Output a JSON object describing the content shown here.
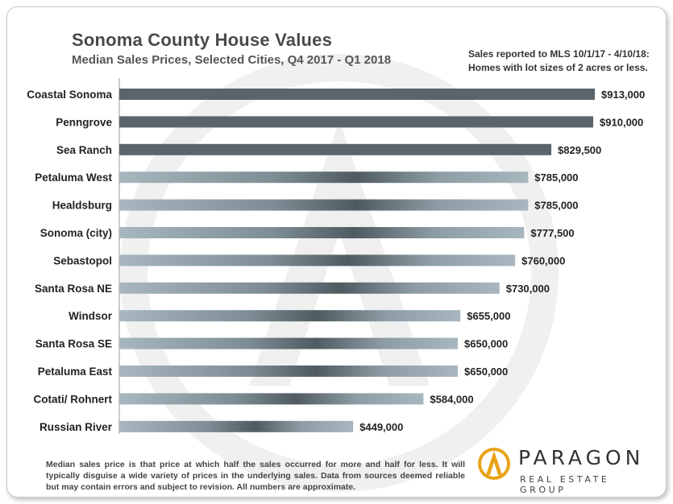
{
  "header": {
    "title": "Sonoma County House Values",
    "subtitle": "Median Sales Prices, Selected Cities, Q4 2017 - Q1 2018",
    "note_line1": "Sales reported to MLS 10/1/17 - 4/10/18:",
    "note_line2": "Homes with lot sizes of 2 acres or less."
  },
  "footnote": "Median sales price is that price at which half the sales occurred for more and half for less. It will typically disguise a wide variety of prices in the underlying sales. Data from sources deemed reliable but may contain errors and subject to revision. All numbers are approximate.",
  "logo": {
    "word": "PARAGON",
    "sub": "REAL ESTATE GROUP"
  },
  "colors": {
    "dark_bar": "#5a656b",
    "light_bar_edge": "#a6b5bd",
    "light_bar_center": "#4f5b61",
    "text": "#222222"
  },
  "chart_data": {
    "type": "bar",
    "orientation": "horizontal",
    "title": "Sonoma County House Values",
    "subtitle": "Median Sales Prices, Selected Cities, Q4 2017 - Q1 2018",
    "categories": [
      "Coastal Sonoma",
      "Penngrove",
      "Sea Ranch",
      "Petaluma West",
      "Healdsburg",
      "Sonoma (city)",
      "Sebastopol",
      "Santa Rosa NE",
      "Windsor",
      "Santa Rosa SE",
      "Petaluma East",
      "Cotati/ Rohnert",
      "Russian River"
    ],
    "values": [
      913000,
      910000,
      829500,
      785000,
      785000,
      777500,
      760000,
      730000,
      655000,
      650000,
      650000,
      584000,
      449000
    ],
    "labels": [
      "$913,000",
      "$910,000",
      "$829,500",
      "$785,000",
      "$785,000",
      "$777,500",
      "$760,000",
      "$730,000",
      "$655,000",
      "$650,000",
      "$650,000",
      "$584,000",
      "$449,000"
    ],
    "dark_count": 3,
    "grid": false,
    "legend": "none"
  }
}
